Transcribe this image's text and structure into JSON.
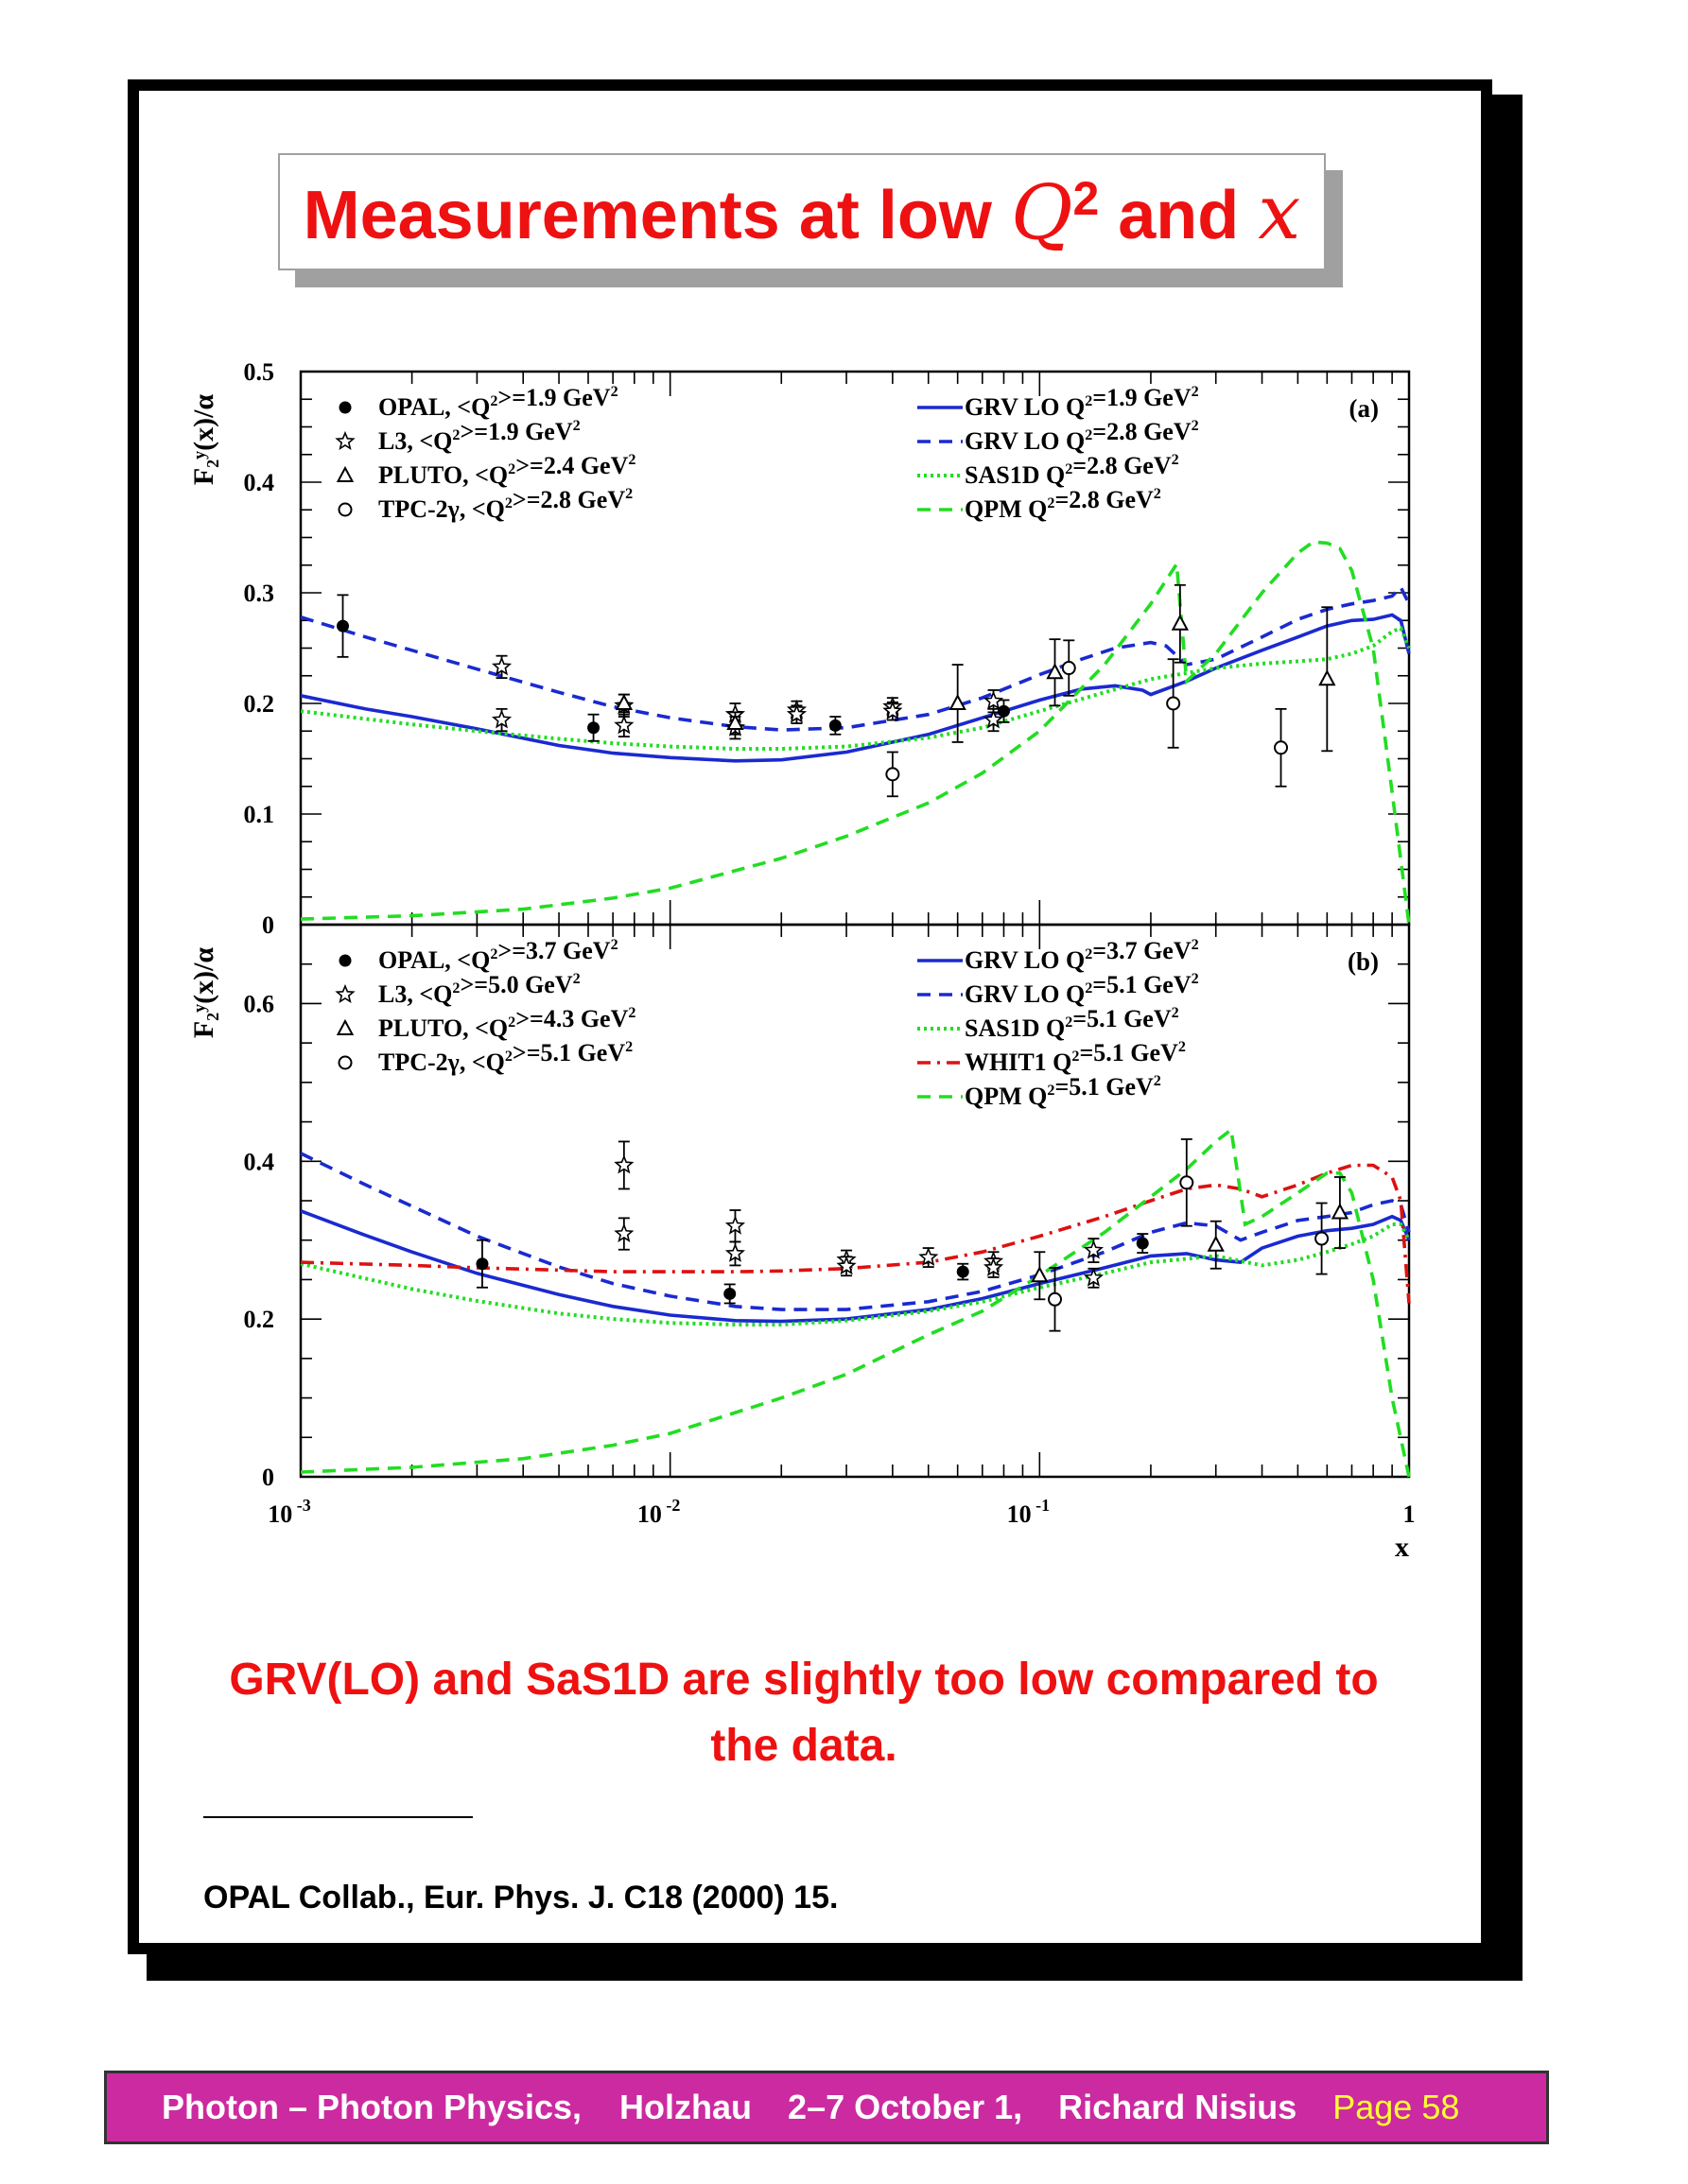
{
  "title": {
    "prefix": "Measurements at low ",
    "q": "Q",
    "exp": "2",
    "mid": " and ",
    "x": "x"
  },
  "caption": "GRV(LO) and SaS1D are slightly too low compared to the data.",
  "reference": "OPAL Collab., Eur. Phys. J. C18 (2000) 15.",
  "footer": {
    "topic": "Photon – Photon Physics,",
    "place": "Holzhau",
    "dates": "2–7 October 1,",
    "author": "Richard Nisius",
    "page": "Page 58"
  },
  "colors": {
    "title_red": "#ee1111",
    "footer_bg": "#cc2aa0",
    "footer_page": "#ffff33",
    "grv_blue": "#1a2ad0",
    "green": "#22dd22",
    "whit_red": "#dd1111"
  },
  "chart_data": [
    {
      "type": "scatter",
      "panel_label": "(a)",
      "ylabel": "F₂ʸ(x)/α",
      "xlabel": "x",
      "x_scale": "log",
      "xlim": [
        0.001,
        1
      ],
      "ylim": [
        0,
        0.5
      ],
      "y_ticks": [
        "0",
        "0.1",
        "0.2",
        "0.3",
        "0.4",
        "0.5"
      ],
      "x_ticks": [
        "10^-3",
        "10^-2",
        "10^-1",
        "1"
      ],
      "legend_placement": "top-left and top-right",
      "data_series": [
        {
          "name": "OPAL, <Q²>=1.9 GeV²",
          "marker": "filled-circle",
          "x": [
            0.0013,
            0.0062,
            0.028,
            0.08
          ],
          "y": [
            0.27,
            0.178,
            0.18,
            0.193
          ],
          "err": [
            0.028,
            0.012,
            0.008,
            0.01
          ]
        },
        {
          "name": "L3, <Q²>=1.9 GeV²",
          "marker": "star",
          "x": [
            0.0035,
            0.0035,
            0.0075,
            0.0075,
            0.015,
            0.015,
            0.022,
            0.022,
            0.04,
            0.04,
            0.075,
            0.075
          ],
          "y": [
            0.233,
            0.185,
            0.198,
            0.18,
            0.19,
            0.178,
            0.194,
            0.19,
            0.197,
            0.193,
            0.202,
            0.185
          ],
          "err": [
            0.01,
            0.01,
            0.01,
            0.01,
            0.01,
            0.01,
            0.008,
            0.008,
            0.008,
            0.008,
            0.01,
            0.01
          ]
        },
        {
          "name": "PLUTO, <Q²>=2.4 GeV²",
          "marker": "open-triangle",
          "x": [
            0.0075,
            0.015,
            0.06,
            0.11,
            0.24,
            0.6
          ],
          "y": [
            0.2,
            0.182,
            0.2,
            0.228,
            0.272,
            0.222
          ],
          "err": [
            0.008,
            0.01,
            0.035,
            0.03,
            0.035,
            0.065
          ]
        },
        {
          "name": "TPC-2γ, <Q²>=2.8 GeV²",
          "marker": "open-circle",
          "x": [
            0.04,
            0.12,
            0.23,
            0.45
          ],
          "y": [
            0.136,
            0.232,
            0.2,
            0.16
          ],
          "err": [
            0.02,
            0.025,
            0.04,
            0.035
          ]
        }
      ],
      "curve_series": [
        {
          "name": "GRV LO Q²=1.9 GeV²",
          "style": "solid",
          "color": "#1a2ad0",
          "x": [
            0.001,
            0.0015,
            0.002,
            0.003,
            0.005,
            0.007,
            0.01,
            0.015,
            0.02,
            0.03,
            0.05,
            0.07,
            0.1,
            0.13,
            0.16,
            0.19,
            0.2,
            0.25,
            0.3,
            0.4,
            0.5,
            0.6,
            0.7,
            0.8,
            0.9,
            0.95,
            1.0
          ],
          "y": [
            0.207,
            0.195,
            0.188,
            0.177,
            0.162,
            0.155,
            0.151,
            0.148,
            0.149,
            0.156,
            0.172,
            0.187,
            0.203,
            0.213,
            0.216,
            0.212,
            0.208,
            0.22,
            0.232,
            0.248,
            0.26,
            0.27,
            0.275,
            0.276,
            0.28,
            0.275,
            0.245
          ]
        },
        {
          "name": "GRV LO Q²=2.8 GeV²",
          "style": "dashed",
          "color": "#1a2ad0",
          "x": [
            0.001,
            0.0015,
            0.002,
            0.003,
            0.005,
            0.007,
            0.01,
            0.015,
            0.02,
            0.03,
            0.05,
            0.07,
            0.1,
            0.13,
            0.16,
            0.2,
            0.22,
            0.25,
            0.3,
            0.4,
            0.5,
            0.6,
            0.7,
            0.8,
            0.9,
            0.95,
            1.0
          ],
          "y": [
            0.278,
            0.26,
            0.248,
            0.231,
            0.21,
            0.197,
            0.187,
            0.179,
            0.176,
            0.178,
            0.19,
            0.205,
            0.226,
            0.24,
            0.25,
            0.255,
            0.252,
            0.235,
            0.24,
            0.26,
            0.276,
            0.285,
            0.29,
            0.293,
            0.297,
            0.305,
            0.29
          ]
        },
        {
          "name": "SAS1D Q²=2.8 GeV²",
          "style": "dotted",
          "color": "#22dd22",
          "x": [
            0.001,
            0.0015,
            0.002,
            0.003,
            0.005,
            0.007,
            0.01,
            0.015,
            0.02,
            0.03,
            0.05,
            0.07,
            0.1,
            0.15,
            0.2,
            0.3,
            0.4,
            0.5,
            0.6,
            0.7,
            0.8,
            0.9,
            0.95,
            1.0
          ],
          "y": [
            0.193,
            0.186,
            0.181,
            0.175,
            0.168,
            0.164,
            0.161,
            0.159,
            0.159,
            0.161,
            0.169,
            0.178,
            0.193,
            0.21,
            0.222,
            0.232,
            0.236,
            0.238,
            0.24,
            0.245,
            0.252,
            0.265,
            0.268,
            0.25
          ]
        },
        {
          "name": "QPM Q²=2.8 GeV²",
          "style": "dashed",
          "color": "#22dd22",
          "x": [
            0.001,
            0.002,
            0.004,
            0.007,
            0.01,
            0.02,
            0.03,
            0.05,
            0.07,
            0.1,
            0.15,
            0.2,
            0.235,
            0.25,
            0.3,
            0.4,
            0.5,
            0.55,
            0.6,
            0.65,
            0.7,
            0.8,
            0.9,
            1.0
          ],
          "y": [
            0.005,
            0.008,
            0.014,
            0.024,
            0.033,
            0.06,
            0.08,
            0.11,
            0.137,
            0.175,
            0.235,
            0.29,
            0.326,
            0.22,
            0.245,
            0.3,
            0.336,
            0.346,
            0.345,
            0.34,
            0.32,
            0.25,
            0.12,
            0
          ]
        }
      ]
    },
    {
      "type": "scatter",
      "panel_label": "(b)",
      "ylabel": "F₂ʸ(x)/α",
      "xlabel": "x",
      "x_scale": "log",
      "xlim": [
        0.001,
        1
      ],
      "ylim": [
        0,
        0.7
      ],
      "y_ticks": [
        "0",
        "0.2",
        "0.4",
        "0.6"
      ],
      "x_ticks": [
        "10^-3",
        "10^-2",
        "10^-1",
        "1"
      ],
      "legend_placement": "top-left and top-right",
      "data_series": [
        {
          "name": "OPAL, <Q²>=3.7 GeV²",
          "marker": "filled-circle",
          "x": [
            0.0031,
            0.0145,
            0.062,
            0.19
          ],
          "y": [
            0.27,
            0.232,
            0.26,
            0.296
          ],
          "err": [
            0.03,
            0.012,
            0.01,
            0.012
          ]
        },
        {
          "name": "L3, <Q²>=5.0 GeV²",
          "marker": "star",
          "x": [
            0.0075,
            0.0075,
            0.015,
            0.015,
            0.03,
            0.03,
            0.05,
            0.075,
            0.075,
            0.14,
            0.14
          ],
          "y": [
            0.395,
            0.308,
            0.318,
            0.283,
            0.275,
            0.267,
            0.278,
            0.273,
            0.265,
            0.287,
            0.252
          ],
          "err": [
            0.03,
            0.02,
            0.02,
            0.015,
            0.012,
            0.012,
            0.012,
            0.012,
            0.012,
            0.015,
            0.012
          ]
        },
        {
          "name": "PLUTO, <Q²>=4.3 GeV²",
          "marker": "open-triangle",
          "x": [
            0.1,
            0.3,
            0.65
          ],
          "y": [
            0.255,
            0.294,
            0.335
          ],
          "err": [
            0.03,
            0.03,
            0.045
          ]
        },
        {
          "name": "TPC-2γ, <Q²>=5.1 GeV²",
          "marker": "open-circle",
          "x": [
            0.11,
            0.25,
            0.58
          ],
          "y": [
            0.225,
            0.373,
            0.302
          ],
          "err": [
            0.04,
            0.055,
            0.045
          ]
        }
      ],
      "curve_series": [
        {
          "name": "GRV LO Q²=3.7 GeV²",
          "style": "solid",
          "color": "#1a2ad0",
          "x": [
            0.001,
            0.0015,
            0.002,
            0.003,
            0.005,
            0.007,
            0.01,
            0.015,
            0.02,
            0.03,
            0.05,
            0.07,
            0.1,
            0.15,
            0.2,
            0.25,
            0.3,
            0.35,
            0.4,
            0.5,
            0.6,
            0.7,
            0.8,
            0.9,
            0.95,
            1.0
          ],
          "y": [
            0.337,
            0.306,
            0.285,
            0.258,
            0.231,
            0.216,
            0.205,
            0.198,
            0.197,
            0.2,
            0.212,
            0.226,
            0.245,
            0.265,
            0.28,
            0.283,
            0.275,
            0.272,
            0.29,
            0.305,
            0.312,
            0.315,
            0.32,
            0.33,
            0.325,
            0.3
          ]
        },
        {
          "name": "GRV LO Q²=5.1 GeV²",
          "style": "dashed",
          "color": "#1a2ad0",
          "x": [
            0.001,
            0.0015,
            0.002,
            0.003,
            0.005,
            0.007,
            0.01,
            0.015,
            0.02,
            0.03,
            0.05,
            0.07,
            0.1,
            0.15,
            0.2,
            0.25,
            0.3,
            0.35,
            0.4,
            0.5,
            0.6,
            0.7,
            0.8,
            0.9,
            0.95,
            1.0
          ],
          "y": [
            0.41,
            0.37,
            0.343,
            0.305,
            0.266,
            0.245,
            0.229,
            0.216,
            0.212,
            0.212,
            0.222,
            0.235,
            0.256,
            0.285,
            0.31,
            0.322,
            0.318,
            0.3,
            0.31,
            0.325,
            0.33,
            0.335,
            0.345,
            0.35,
            0.345,
            0.31
          ]
        },
        {
          "name": "SAS1D Q²=5.1 GeV²",
          "style": "dotted",
          "color": "#22dd22",
          "x": [
            0.001,
            0.002,
            0.003,
            0.005,
            0.007,
            0.01,
            0.015,
            0.02,
            0.03,
            0.05,
            0.07,
            0.1,
            0.15,
            0.2,
            0.3,
            0.4,
            0.5,
            0.6,
            0.7,
            0.8,
            0.9,
            0.95,
            1.0
          ],
          "y": [
            0.27,
            0.238,
            0.223,
            0.207,
            0.2,
            0.195,
            0.193,
            0.193,
            0.198,
            0.21,
            0.222,
            0.24,
            0.258,
            0.272,
            0.28,
            0.268,
            0.275,
            0.285,
            0.295,
            0.305,
            0.32,
            0.32,
            0.3
          ]
        },
        {
          "name": "WHIT1 Q²=5.1 GeV²",
          "style": "dashdot",
          "color": "#dd1111",
          "x": [
            0.001,
            0.002,
            0.003,
            0.005,
            0.007,
            0.01,
            0.015,
            0.02,
            0.03,
            0.05,
            0.07,
            0.1,
            0.15,
            0.2,
            0.25,
            0.3,
            0.35,
            0.4,
            0.5,
            0.6,
            0.7,
            0.8,
            0.9,
            0.95,
            1.0
          ],
          "y": [
            0.272,
            0.268,
            0.265,
            0.262,
            0.26,
            0.26,
            0.26,
            0.261,
            0.264,
            0.272,
            0.285,
            0.305,
            0.33,
            0.35,
            0.365,
            0.37,
            0.365,
            0.355,
            0.37,
            0.385,
            0.395,
            0.395,
            0.38,
            0.35,
            0.22
          ]
        },
        {
          "name": "QPM Q²=5.1 GeV²",
          "style": "dashed",
          "color": "#22dd22",
          "x": [
            0.001,
            0.002,
            0.004,
            0.007,
            0.01,
            0.02,
            0.03,
            0.05,
            0.07,
            0.1,
            0.15,
            0.2,
            0.25,
            0.3,
            0.33,
            0.36,
            0.4,
            0.5,
            0.6,
            0.65,
            0.7,
            0.8,
            0.9,
            1.0
          ],
          "y": [
            0.006,
            0.012,
            0.023,
            0.04,
            0.055,
            0.1,
            0.13,
            0.18,
            0.21,
            0.255,
            0.31,
            0.355,
            0.39,
            0.425,
            0.44,
            0.32,
            0.33,
            0.36,
            0.385,
            0.385,
            0.36,
            0.25,
            0.1,
            0
          ]
        }
      ]
    }
  ],
  "legend_a_left": [
    "OPAL, <Q²>=1.9 GeV²",
    "L3, <Q²>=1.9 GeV²",
    "PLUTO, <Q²>=2.4 GeV²",
    "TPC-2γ, <Q²>=2.8 GeV²"
  ],
  "legend_a_right": [
    "GRV LO Q²=1.9 GeV²",
    "GRV LO Q²=2.8 GeV²",
    "SAS1D Q²=2.8 GeV²",
    "QPM Q²=2.8 GeV²"
  ],
  "legend_b_left": [
    "OPAL, <Q²>=3.7 GeV²",
    "L3, <Q²>=5.0 GeV²",
    "PLUTO, <Q²>=4.3 GeV²",
    "TPC-2γ, <Q²>=5.1 GeV²"
  ],
  "legend_b_right": [
    "GRV LO Q²=3.7 GeV²",
    "GRV LO Q²=5.1 GeV²",
    "SAS1D Q²=5.1 GeV²",
    "WHIT1 Q²=5.1 GeV²",
    "QPM Q²=5.1 GeV²"
  ]
}
